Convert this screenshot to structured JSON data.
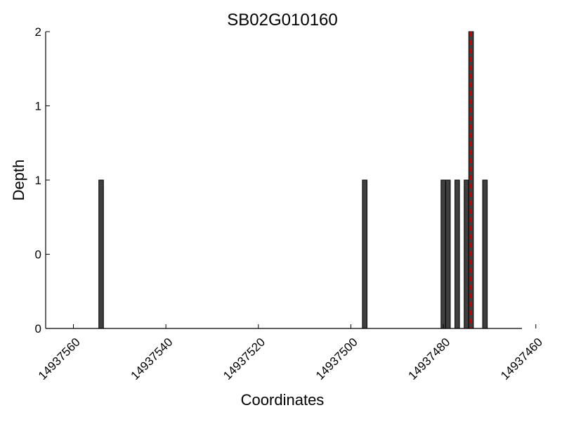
{
  "chart_data": {
    "type": "bar",
    "title": "SB02G010160",
    "xlabel": "Coordinates",
    "ylabel": "Depth",
    "xlim": [
      14937566,
      14937463
    ],
    "ylim": [
      0,
      2
    ],
    "x_ticks": [
      14937560,
      14937540,
      14937520,
      14937500,
      14937480,
      14937460
    ],
    "x_tick_labels": [
      "14937560",
      "14937540",
      "14937520",
      "14937500",
      "14937480",
      "14937460"
    ],
    "y_ticks": [
      0,
      0.5,
      1,
      1.5,
      2
    ],
    "y_tick_labels": [
      "0",
      "0",
      "1",
      "1",
      "2"
    ],
    "bar_width": 1,
    "bar_color": "#3f3f3f",
    "bars": [
      {
        "x": 14937554,
        "depth": 1
      },
      {
        "x": 14937497,
        "depth": 1
      },
      {
        "x": 14937480,
        "depth": 1
      },
      {
        "x": 14937479,
        "depth": 1
      },
      {
        "x": 14937477,
        "depth": 1
      },
      {
        "x": 14937475,
        "depth": 1
      },
      {
        "x": 14937474,
        "depth": 2
      },
      {
        "x": 14937471,
        "depth": 1
      }
    ],
    "marker": {
      "x": 14937474,
      "color": "#cc0000",
      "style": "dashed"
    }
  }
}
